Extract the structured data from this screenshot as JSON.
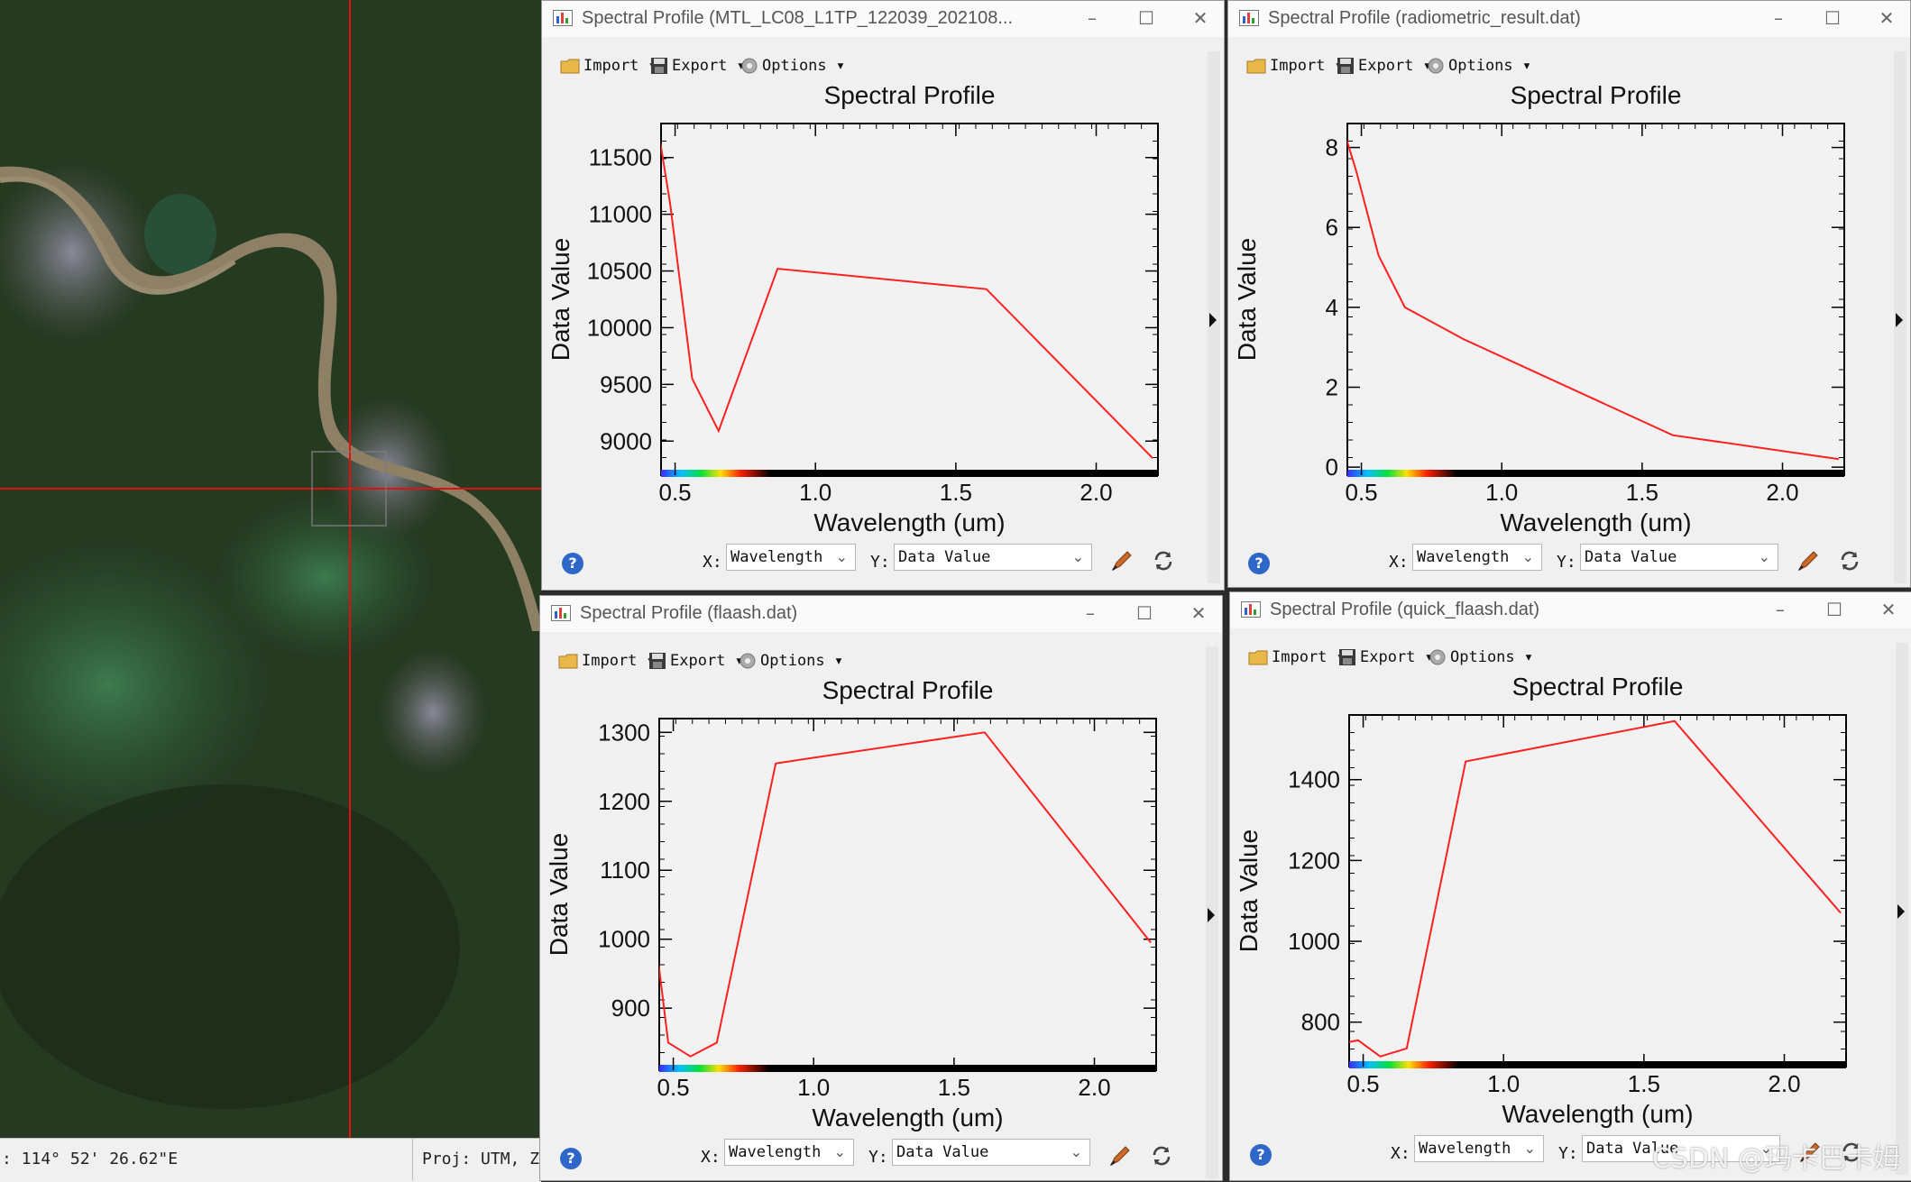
{
  "status_bar": {
    "coordinate": ": 114° 52' 26.62\"E",
    "projection": "Proj: UTM, Z"
  },
  "toolbar_labels": {
    "import": "Import",
    "export": "Export",
    "options": "Options"
  },
  "bottom_labels": {
    "x": "X:",
    "y": "Y:",
    "x_value": "Wavelength",
    "y_value": "Data Value"
  },
  "windows": [
    {
      "title": "Spectral Profile (MTL_LC08_L1TP_122039_202108...",
      "chart_data": {
        "type": "line",
        "title": "Spectral Profile",
        "xlabel": "Wavelength (um)",
        "ylabel": "Data Value",
        "xlim": [
          0.45,
          2.22
        ],
        "ylim": [
          8700,
          11800
        ],
        "xticks": [
          0.5,
          1.0,
          1.5,
          2.0
        ],
        "xtick_labels": [
          "0.5",
          "1.0",
          "1.5",
          "2.0"
        ],
        "yticks": [
          9000,
          9500,
          10000,
          10500,
          11000,
          11500
        ],
        "ytick_labels": [
          "9000",
          "9500",
          "10000",
          "10500",
          "11000",
          "11500"
        ],
        "x": [
          0.443,
          0.482,
          0.561,
          0.655,
          0.865,
          1.609,
          2.201
        ],
        "y": [
          11700,
          11100,
          9550,
          9090,
          10520,
          10340,
          8850
        ],
        "line_color": "#ff2020"
      }
    },
    {
      "title": "Spectral Profile (radiometric_result.dat)",
      "chart_data": {
        "type": "line",
        "title": "Spectral Profile",
        "xlabel": "Wavelength (um)",
        "ylabel": "Data Value",
        "xlim": [
          0.45,
          2.22
        ],
        "ylim": [
          -0.2,
          8.6
        ],
        "xticks": [
          0.5,
          1.0,
          1.5,
          2.0
        ],
        "xtick_labels": [
          "0.5",
          "1.0",
          "1.5",
          "2.0"
        ],
        "yticks": [
          0,
          2,
          4,
          6,
          8
        ],
        "ytick_labels": [
          "0",
          "2",
          "4",
          "6",
          "8"
        ],
        "x": [
          0.443,
          0.482,
          0.561,
          0.655,
          0.865,
          1.609,
          2.201
        ],
        "y": [
          8.3,
          7.4,
          5.3,
          4.0,
          3.2,
          0.8,
          0.2
        ],
        "line_color": "#ff2020"
      }
    },
    {
      "title": "Spectral Profile (flaash.dat)",
      "chart_data": {
        "type": "line",
        "title": "Spectral Profile",
        "xlabel": "Wavelength (um)",
        "ylabel": "Data Value",
        "xlim": [
          0.45,
          2.22
        ],
        "ylim": [
          810,
          1320
        ],
        "xticks": [
          0.5,
          1.0,
          1.5,
          2.0
        ],
        "xtick_labels": [
          "0.5",
          "1.0",
          "1.5",
          "2.0"
        ],
        "yticks": [
          900,
          1000,
          1100,
          1200,
          1300
        ],
        "ytick_labels": [
          "900",
          "1000",
          "1100",
          "1200",
          "1300"
        ],
        "x": [
          0.443,
          0.482,
          0.561,
          0.655,
          0.865,
          1.609,
          2.201
        ],
        "y": [
          980,
          850,
          830,
          850,
          1255,
          1300,
          995
        ],
        "line_color": "#ff2020"
      }
    },
    {
      "title": "Spectral Profile (quick_flaash.dat)",
      "chart_data": {
        "type": "line",
        "title": "Spectral Profile",
        "xlabel": "Wavelength (um)",
        "ylabel": "Data Value",
        "xlim": [
          0.45,
          2.22
        ],
        "ylim": [
          690,
          1560
        ],
        "xticks": [
          0.5,
          1.0,
          1.5,
          2.0
        ],
        "xtick_labels": [
          "0.5",
          "1.0",
          "1.5",
          "2.0"
        ],
        "yticks": [
          800,
          1000,
          1200,
          1400
        ],
        "ytick_labels": [
          "800",
          "1000",
          "1200",
          "1400"
        ],
        "x": [
          0.443,
          0.482,
          0.561,
          0.655,
          0.865,
          1.609,
          2.201
        ],
        "y": [
          750,
          755,
          715,
          735,
          1445,
          1545,
          1070
        ],
        "line_color": "#ff2020"
      }
    }
  ],
  "watermark": "CSDN @玛卡巴卡姆"
}
